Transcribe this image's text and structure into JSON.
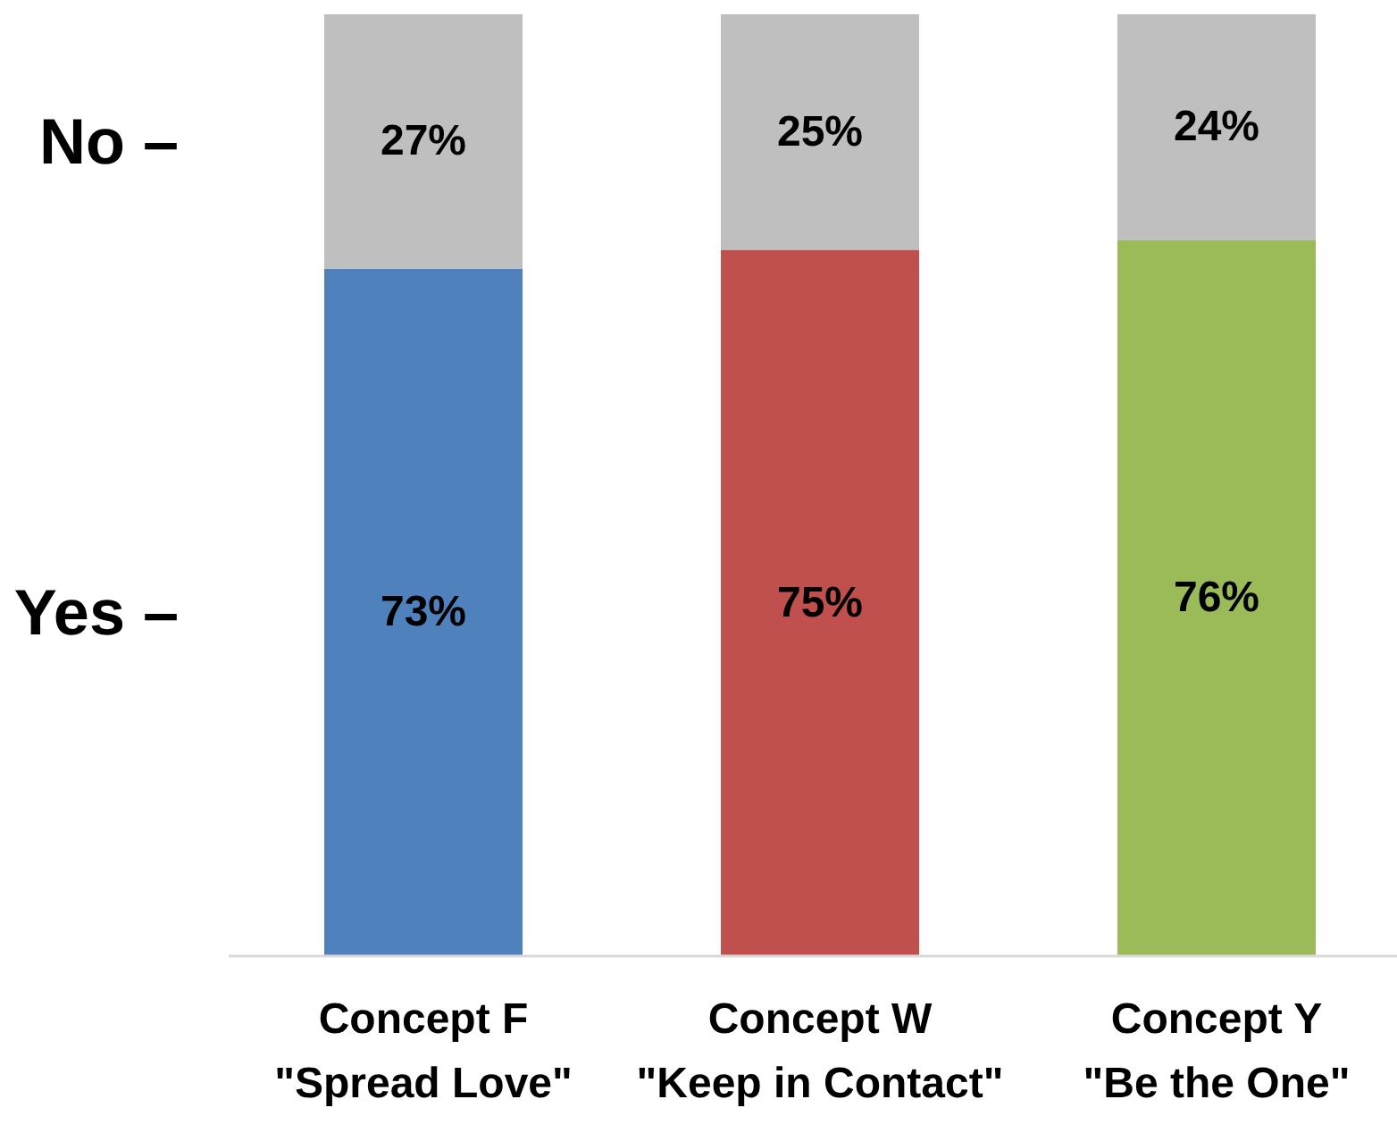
{
  "chart_data": {
    "type": "bar",
    "stacked": true,
    "legend": false,
    "categories": [
      "Concept F\n\"Spread Love\"",
      "Concept W\n\"Keep in Contact\"",
      "Concept Y\n\"Be the One\""
    ],
    "series": [
      {
        "name": "Yes –",
        "colors": [
          "#4f81bd",
          "#c0504d",
          "#9bbb59"
        ],
        "values": [
          73,
          75,
          76
        ],
        "value_labels": [
          "73%",
          "75%",
          "76%"
        ]
      },
      {
        "name": "No –",
        "color": "#bfbfbf",
        "values": [
          27,
          25,
          24
        ],
        "value_labels": [
          "27%",
          "25%",
          "24%"
        ]
      }
    ]
  }
}
